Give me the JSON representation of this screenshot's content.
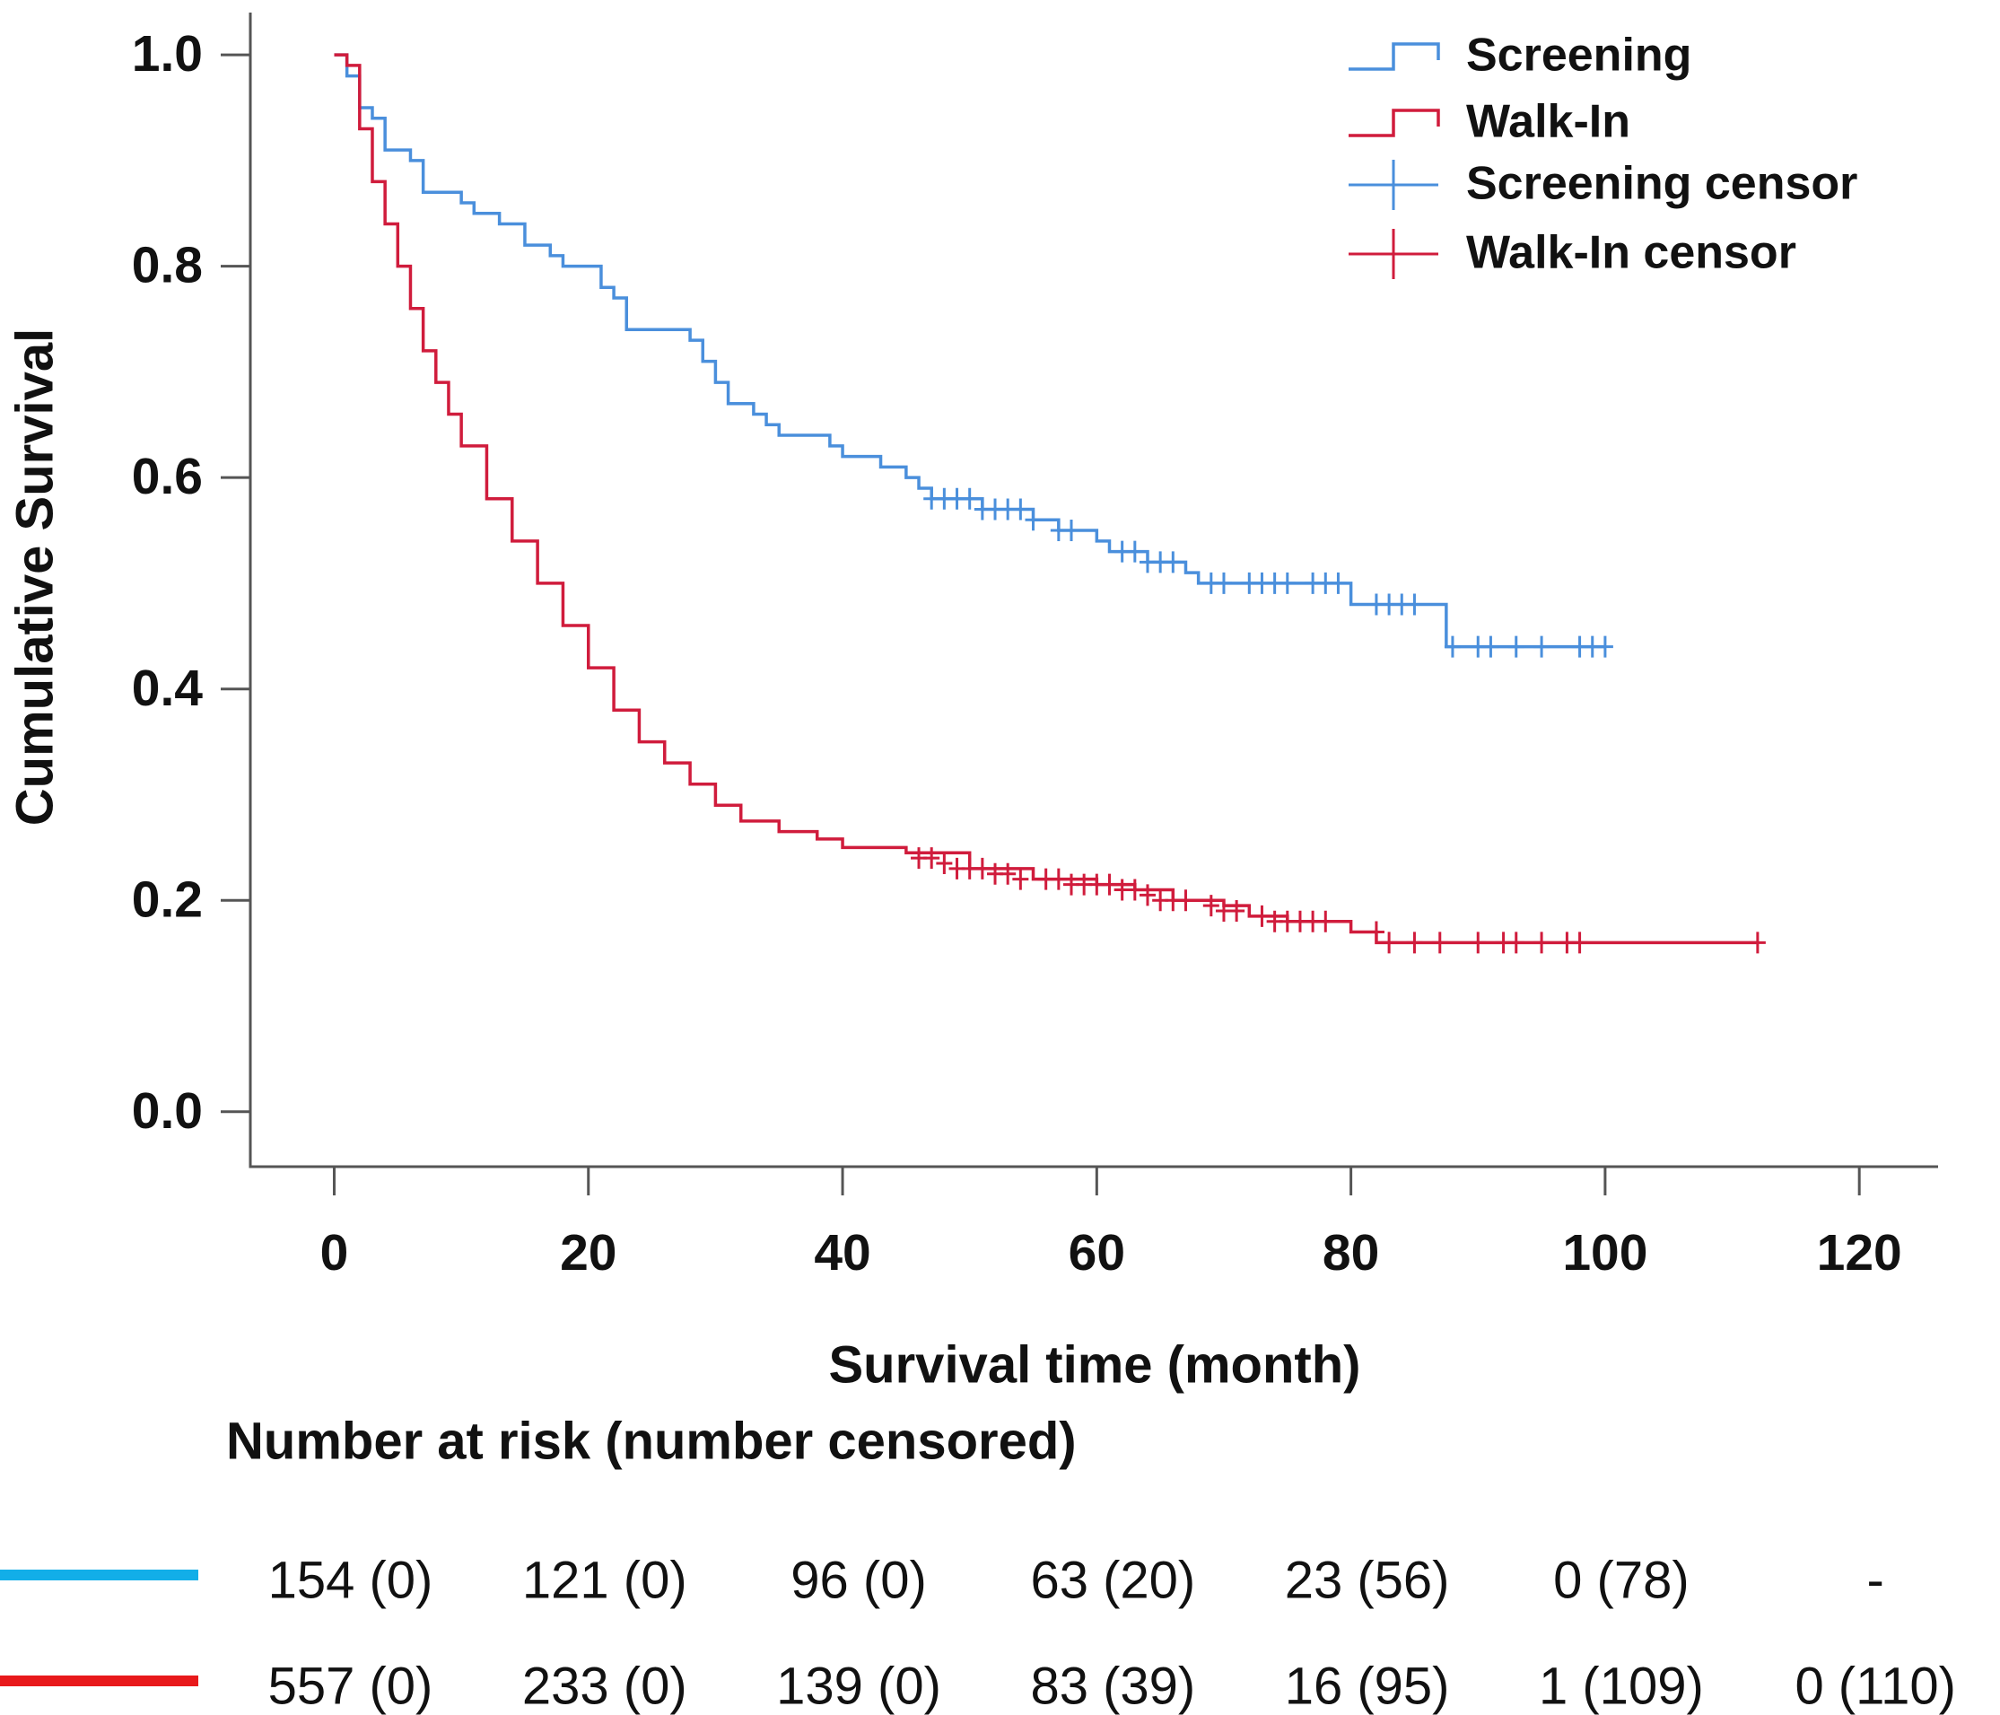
{
  "chart_data": {
    "type": "survival",
    "xlabel": "Survival time (month)",
    "ylabel": "Cumulative Survival",
    "xlim": [
      -6.6,
      126.2
    ],
    "ylim": [
      -0.052,
      1.04
    ],
    "xticks": [
      0,
      20,
      40,
      60,
      80,
      100,
      120
    ],
    "yticks": [
      {
        "value": 0,
        "label": "0.0"
      },
      0.2,
      0.4,
      0.6,
      0.8,
      {
        "value": 1,
        "label": "1.0"
      }
    ],
    "series": [
      {
        "name": "Screening",
        "color": "#4a8fdc",
        "mark": "step",
        "x": [
          0,
          1,
          2,
          3,
          4,
          6,
          7,
          9,
          10,
          11,
          13,
          15,
          17,
          18,
          20,
          21,
          22,
          23,
          26,
          28,
          29,
          30,
          31,
          33,
          34,
          35,
          38,
          39,
          40,
          42,
          43,
          45,
          46,
          47,
          51,
          55,
          57,
          60,
          61,
          64,
          67,
          68,
          79,
          80,
          87,
          87.5,
          100
        ],
        "values": [
          1.0,
          0.98,
          0.95,
          0.94,
          0.91,
          0.9,
          0.87,
          0.87,
          0.86,
          0.85,
          0.84,
          0.82,
          0.81,
          0.8,
          0.8,
          0.78,
          0.77,
          0.74,
          0.74,
          0.73,
          0.71,
          0.69,
          0.67,
          0.66,
          0.65,
          0.64,
          0.64,
          0.63,
          0.62,
          0.62,
          0.61,
          0.6,
          0.59,
          0.58,
          0.57,
          0.56,
          0.55,
          0.54,
          0.53,
          0.52,
          0.51,
          0.5,
          0.5,
          0.48,
          0.48,
          0.44,
          0.44
        ]
      },
      {
        "name": "Walk-In",
        "color": "#d01c3c",
        "mark": "step",
        "x": [
          0,
          1,
          2,
          3,
          4,
          5,
          6,
          7,
          8,
          9,
          10,
          12,
          14,
          16,
          18,
          20,
          22,
          24,
          26,
          28,
          30,
          32,
          35,
          38,
          40,
          45,
          50,
          55,
          60,
          63,
          66,
          70,
          72,
          75,
          79,
          80,
          82,
          112
        ],
        "values": [
          1.0,
          0.99,
          0.93,
          0.88,
          0.84,
          0.8,
          0.76,
          0.72,
          0.69,
          0.66,
          0.63,
          0.58,
          0.54,
          0.5,
          0.46,
          0.42,
          0.38,
          0.35,
          0.33,
          0.31,
          0.29,
          0.275,
          0.265,
          0.258,
          0.25,
          0.245,
          0.23,
          0.22,
          0.215,
          0.21,
          0.2,
          0.195,
          0.185,
          0.18,
          0.18,
          0.17,
          0.16,
          0.16
        ]
      },
      {
        "name": "Screening censor",
        "color": "#4a8fdc",
        "mark": "censor",
        "x": [
          47,
          48,
          49,
          50,
          51,
          52,
          53,
          54,
          55,
          57,
          58,
          62,
          63,
          64,
          65,
          66,
          69,
          70,
          72,
          73,
          74,
          75,
          77,
          78,
          79,
          82,
          83,
          84,
          85,
          88,
          90,
          91,
          93,
          95,
          98,
          99,
          100
        ],
        "values": [
          0.58,
          0.58,
          0.58,
          0.58,
          0.57,
          0.57,
          0.57,
          0.57,
          0.56,
          0.55,
          0.55,
          0.53,
          0.53,
          0.52,
          0.52,
          0.52,
          0.5,
          0.5,
          0.5,
          0.5,
          0.5,
          0.5,
          0.5,
          0.5,
          0.5,
          0.48,
          0.48,
          0.48,
          0.48,
          0.44,
          0.44,
          0.44,
          0.44,
          0.44,
          0.44,
          0.44,
          0.44
        ]
      },
      {
        "name": "Walk-In censor",
        "color": "#d01c3c",
        "mark": "censor",
        "x": [
          46,
          47,
          48,
          49,
          50,
          51,
          52,
          53,
          54,
          56,
          57,
          58,
          59,
          60,
          61,
          62,
          63,
          64,
          65,
          66,
          67,
          69,
          70,
          71,
          73,
          74,
          75,
          76,
          77,
          78,
          82,
          83,
          85,
          87,
          90,
          92,
          93,
          95,
          97,
          98,
          112
        ],
        "values": [
          0.24,
          0.24,
          0.235,
          0.23,
          0.23,
          0.23,
          0.225,
          0.225,
          0.22,
          0.22,
          0.22,
          0.215,
          0.215,
          0.215,
          0.215,
          0.21,
          0.21,
          0.205,
          0.2,
          0.2,
          0.2,
          0.195,
          0.19,
          0.19,
          0.185,
          0.18,
          0.18,
          0.18,
          0.18,
          0.18,
          0.17,
          0.16,
          0.16,
          0.16,
          0.16,
          0.16,
          0.16,
          0.16,
          0.16,
          0.16,
          0.16
        ]
      }
    ],
    "risk_table": {
      "title": "Number at risk (number censored)",
      "rows": [
        {
          "color": "#12aee8",
          "cells": [
            "154 (0)",
            "121 (0)",
            "96 (0)",
            "63 (20)",
            "23 (56)",
            "0 (78)",
            "-"
          ]
        },
        {
          "color": "#e8191b",
          "cells": [
            "557 (0)",
            "233 (0)",
            "139 (0)",
            "83 (39)",
            "16 (95)",
            "1 (109)",
            "0 (110)"
          ]
        }
      ]
    }
  }
}
